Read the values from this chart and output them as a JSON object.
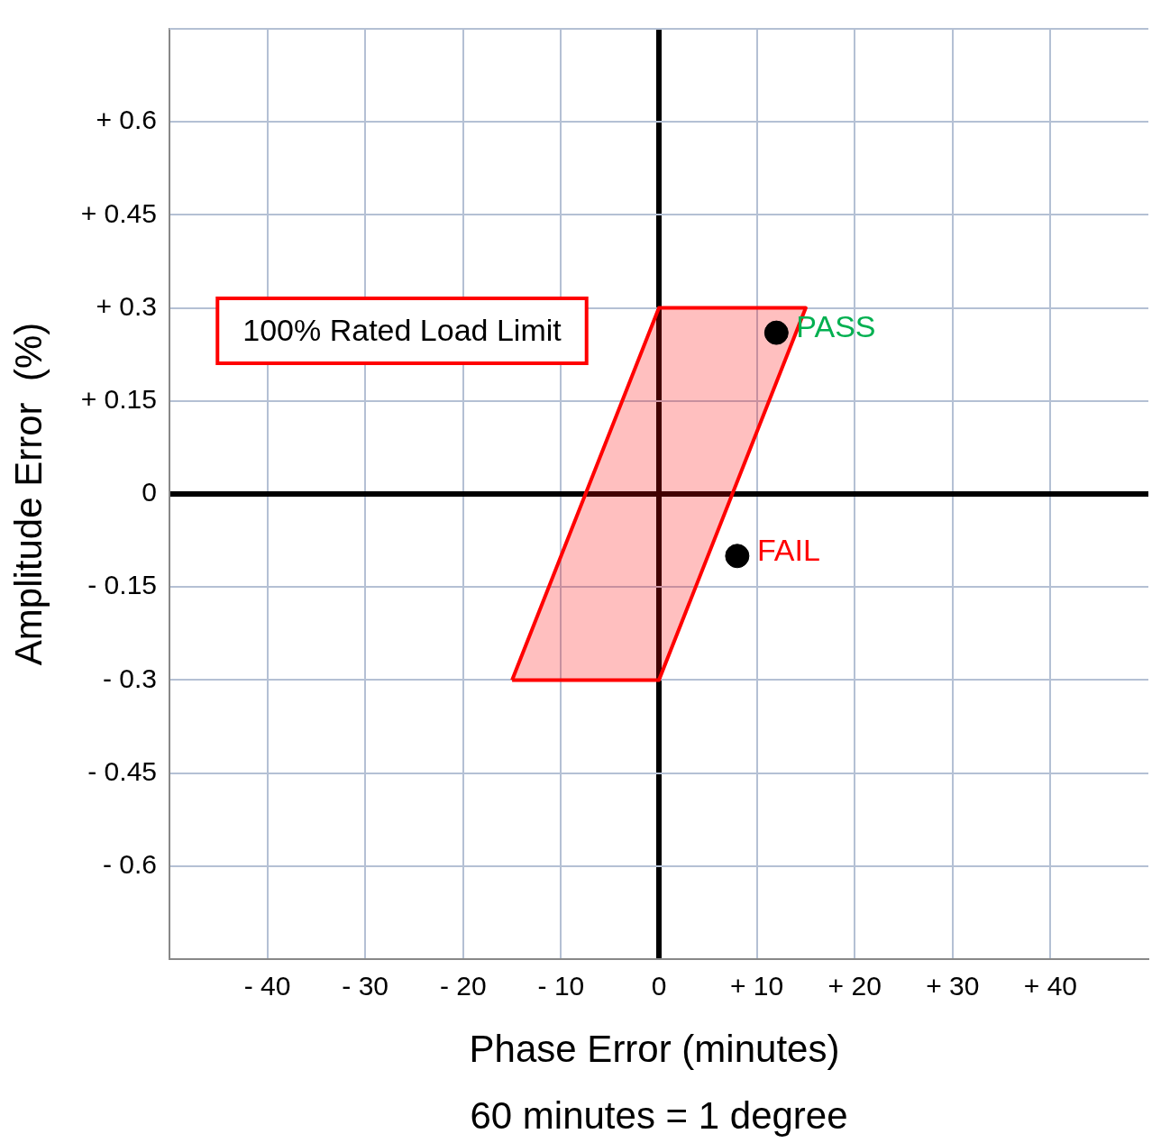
{
  "chart_data": {
    "type": "scatter",
    "xlabel": "Phase Error (minutes)",
    "ylabel": "Amplitude Error  (%)",
    "xlim": [
      -50,
      50
    ],
    "ylim": [
      -0.75,
      0.75
    ],
    "xticks": [
      {
        "value": -40,
        "label": "- 40"
      },
      {
        "value": -30,
        "label": "- 30"
      },
      {
        "value": -20,
        "label": "- 20"
      },
      {
        "value": -10,
        "label": "- 10"
      },
      0,
      {
        "value": 10,
        "label": "+ 10"
      },
      {
        "value": 20,
        "label": "+ 20"
      },
      {
        "value": 30,
        "label": "+ 30"
      },
      {
        "value": 40,
        "label": "+ 40"
      }
    ],
    "yticks": [
      {
        "value": -0.6,
        "label": "- 0.6"
      },
      {
        "value": -0.45,
        "label": "- 0.45"
      },
      {
        "value": -0.3,
        "label": "- 0.3"
      },
      {
        "value": -0.15,
        "label": "- 0.15"
      },
      0,
      {
        "value": 0.15,
        "label": "+ 0.15"
      },
      {
        "value": 0.3,
        "label": "+ 0.3"
      },
      {
        "value": 0.45,
        "label": "+ 0.45"
      },
      {
        "value": 0.6,
        "label": "+ 0.6"
      }
    ],
    "grid": true,
    "legend": false,
    "series": [
      {
        "type": "area",
        "color": "#ff0000",
        "x": [
          -15,
          0,
          15,
          0,
          -15
        ],
        "values": [
          -0.3,
          -0.3,
          0.3,
          0.3,
          -0.3
        ]
      },
      {
        "name": "PASS",
        "color": "#000000",
        "marker": "circle",
        "x": [
          12
        ],
        "values": [
          0.26
        ]
      },
      {
        "name": "FAIL",
        "color": "#000000",
        "marker": "circle",
        "x": [
          8
        ],
        "values": [
          -0.1
        ]
      }
    ],
    "annotations": [
      "100% Rated Load Limit",
      "60 minutes = 1 degree"
    ]
  }
}
